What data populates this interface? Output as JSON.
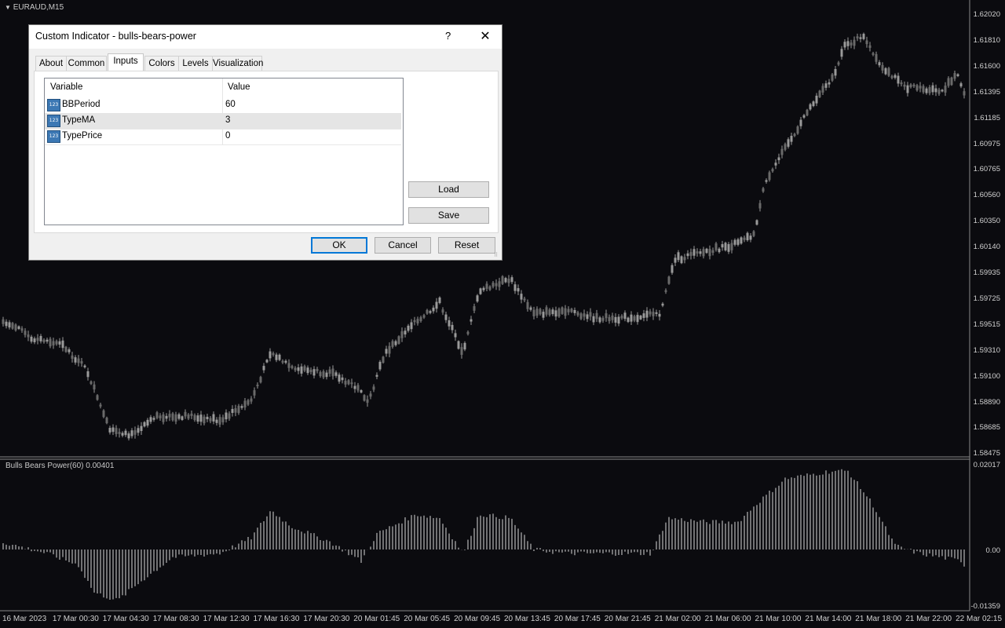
{
  "chart": {
    "symbol_label": "EURAUD,M15",
    "indicator_label": "Bulls Bears Power(60) 0.00401",
    "price_scale": [
      "1.62020",
      "1.61810",
      "1.61600",
      "1.61395",
      "1.61185",
      "1.60975",
      "1.60765",
      "1.60560",
      "1.60350",
      "1.60140",
      "1.59935",
      "1.59725",
      "1.59515",
      "1.59310",
      "1.59100",
      "1.58890",
      "1.58685",
      "1.58475"
    ],
    "indicator_scale": [
      "0.02017",
      "0.00",
      "-0.01359"
    ],
    "time_axis": [
      "16 Mar 2023",
      "17 Mar 00:30",
      "17 Mar 04:30",
      "17 Mar 08:30",
      "17 Mar 12:30",
      "17 Mar 16:30",
      "17 Mar 20:30",
      "20 Mar 01:45",
      "20 Mar 05:45",
      "20 Mar 09:45",
      "20 Mar 13:45",
      "20 Mar 17:45",
      "20 Mar 21:45",
      "21 Mar 02:00",
      "21 Mar 06:00",
      "21 Mar 10:00",
      "21 Mar 14:00",
      "21 Mar 18:00",
      "21 Mar 22:00",
      "22 Mar 02:15"
    ],
    "colors": {
      "background": "#0b0b0f",
      "candles": "#9a9a9a",
      "histogram": "#d8d8d8",
      "separator": "#8a8a8a"
    }
  },
  "dialog": {
    "title": "Custom Indicator - bulls-bears-power",
    "help": "?",
    "close": "✕",
    "tabs": [
      "About",
      "Common",
      "Inputs",
      "Colors",
      "Levels",
      "Visualization"
    ],
    "active_tab": "Inputs",
    "table": {
      "headers": [
        "Variable",
        "Value"
      ],
      "rows": [
        {
          "icon": "123",
          "variable": "BBPeriod",
          "value": "60"
        },
        {
          "icon": "123",
          "variable": "TypeMA",
          "value": "3"
        },
        {
          "icon": "123",
          "variable": "TypePrice",
          "value": "0"
        }
      ]
    },
    "load": "Load",
    "save": "Save",
    "ok": "OK",
    "cancel": "Cancel",
    "reset": "Reset"
  }
}
